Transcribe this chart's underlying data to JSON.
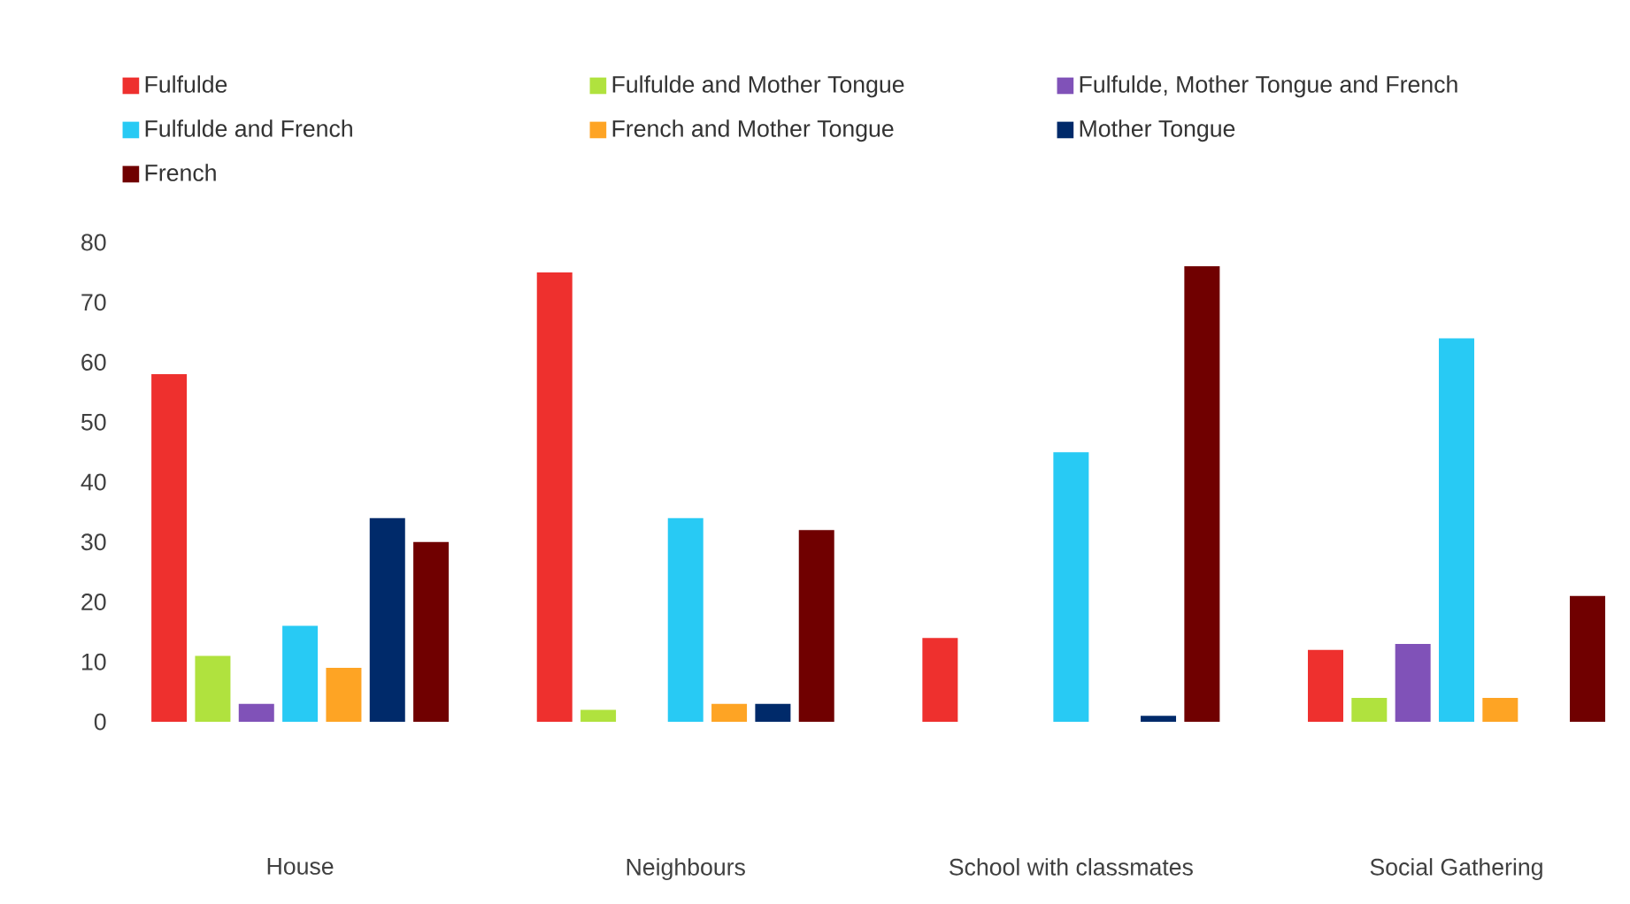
{
  "chart_data": {
    "type": "bar",
    "categories": [
      "House",
      "Neighbours",
      "School with classmates",
      "Social Gathering"
    ],
    "series": [
      {
        "name": "Fulfulde",
        "color": "#ee302e",
        "values": [
          58,
          75,
          14,
          12
        ]
      },
      {
        "name": "Fulfulde and Mother  Tongue",
        "color": "#b0e23e",
        "values": [
          11,
          2,
          0,
          4
        ]
      },
      {
        "name": "Fulfulde, Mother  Tongue and French",
        "color": "#8052b8",
        "values": [
          3,
          0,
          0,
          13
        ]
      },
      {
        "name": "Fulfulde and French",
        "color": "#28caf4",
        "values": [
          16,
          34,
          45,
          64
        ]
      },
      {
        "name": "French and Mother Tongue",
        "color": "#fea424",
        "values": [
          9,
          3,
          0,
          4
        ]
      },
      {
        "name": "Mother Tongue",
        "color": "#002a6a",
        "values": [
          34,
          3,
          1,
          0
        ]
      },
      {
        "name": "French",
        "color": "#700000",
        "values": [
          30,
          32,
          76,
          21
        ]
      }
    ],
    "ylim": [
      0,
      80
    ],
    "yticks": [
      0,
      10,
      20,
      30,
      40,
      50,
      60,
      70,
      80
    ],
    "grid": false,
    "legend": "top"
  }
}
